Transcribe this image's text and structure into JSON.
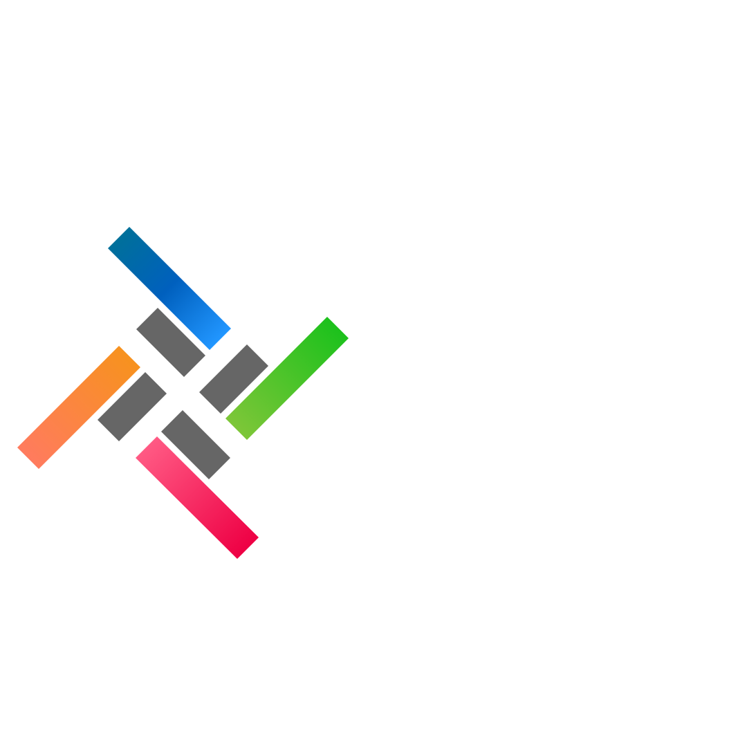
{
  "logo": {
    "name": "pinwheel-logo",
    "colors": {
      "blue_start": "#00709A",
      "blue_mid": "#0060BE",
      "blue_end": "#2196FF",
      "green_start": "#7DC638",
      "green_end": "#1CC11C",
      "orange_start": "#F7921E",
      "orange_end": "#FF7B5E",
      "pink_start": "#FF5A84",
      "pink_end": "#EE0044",
      "gray": "#666666"
    }
  }
}
